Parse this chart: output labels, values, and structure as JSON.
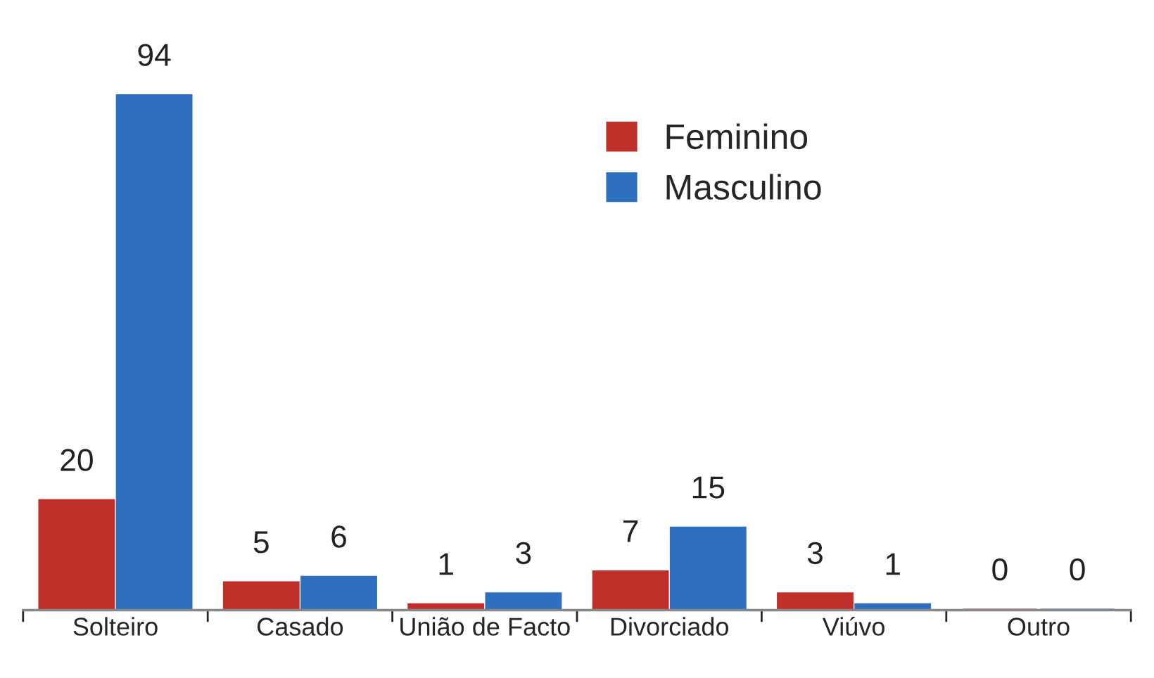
{
  "chart_data": {
    "type": "bar",
    "categories": [
      "Solteiro",
      "Casado",
      "União de Facto",
      "Divorciado",
      "Viúvo",
      "Outro"
    ],
    "series": [
      {
        "name": "Feminino",
        "color": "#c0302b",
        "values": [
          20,
          5,
          1,
          7,
          3,
          0
        ]
      },
      {
        "name": "Masculino",
        "color": "#2f6fc0",
        "values": [
          94,
          6,
          3,
          15,
          1,
          0
        ]
      }
    ],
    "data_labels": true,
    "legend": "top right",
    "grid": false
  }
}
